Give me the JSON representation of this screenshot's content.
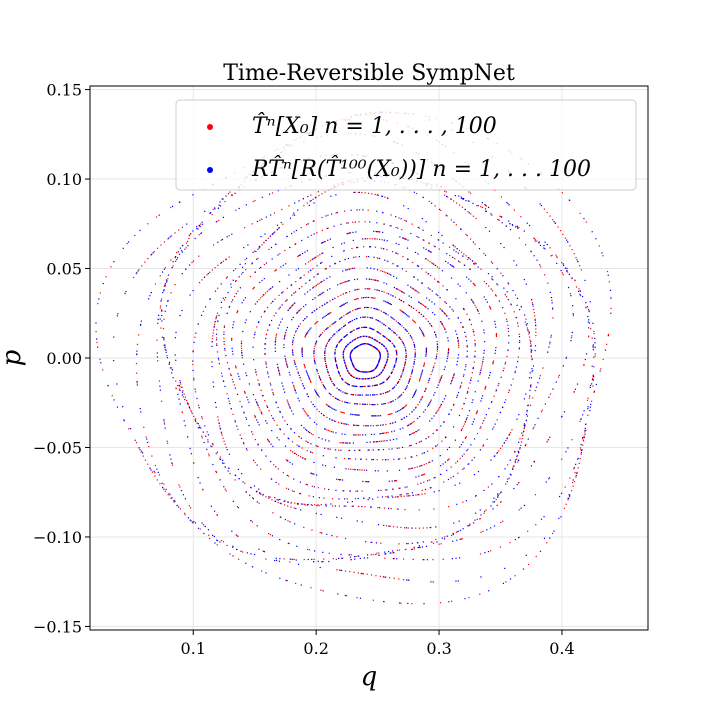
{
  "chart_data": {
    "type": "scatter",
    "title": "Time-Reversible SympNet",
    "xlabel": "q",
    "ylabel": "p",
    "xlim": [
      0.016,
      0.47
    ],
    "ylim": [
      -0.152,
      0.152
    ],
    "xticks": [
      0.1,
      0.2,
      0.3,
      0.4
    ],
    "xtick_labels": [
      "0.1",
      "0.2",
      "0.3",
      "0.4"
    ],
    "yticks": [
      0.15,
      0.1,
      0.05,
      0.0,
      -0.05,
      -0.1,
      -0.15
    ],
    "ytick_labels": [
      "0.15",
      "0.10",
      "0.05",
      "0.00",
      "−0.05",
      "−0.10",
      "−0.15"
    ],
    "grid": true,
    "legend_position": "top-right",
    "center": [
      0.24,
      0.0
    ],
    "series": [
      {
        "name": "T̂ⁿ[X₀]        n = 1, . . . , 100",
        "color": "#ff0000",
        "radii_q": [
          0.012,
          0.018,
          0.025,
          0.033,
          0.041,
          0.05,
          0.058,
          0.066,
          0.074,
          0.082,
          0.09,
          0.098,
          0.106,
          0.114,
          0.122,
          0.13,
          0.138,
          0.146,
          0.154,
          0.162,
          0.17,
          0.178,
          0.186,
          0.195,
          0.205
        ]
      },
      {
        "name": "RT̂ⁿ[R(T̂¹⁰⁰(X₀))]        n = 1, . . . 100",
        "color": "#0000ff",
        "radii_q": [
          0.012,
          0.018,
          0.025,
          0.033,
          0.041,
          0.05,
          0.058,
          0.066,
          0.074,
          0.082,
          0.09,
          0.098,
          0.106,
          0.114,
          0.122,
          0.13,
          0.138,
          0.146,
          0.154,
          0.162,
          0.17,
          0.178,
          0.186,
          0.195,
          0.205
        ]
      }
    ],
    "points_per_orbit": 100,
    "aspect_p_per_q": 0.66
  }
}
